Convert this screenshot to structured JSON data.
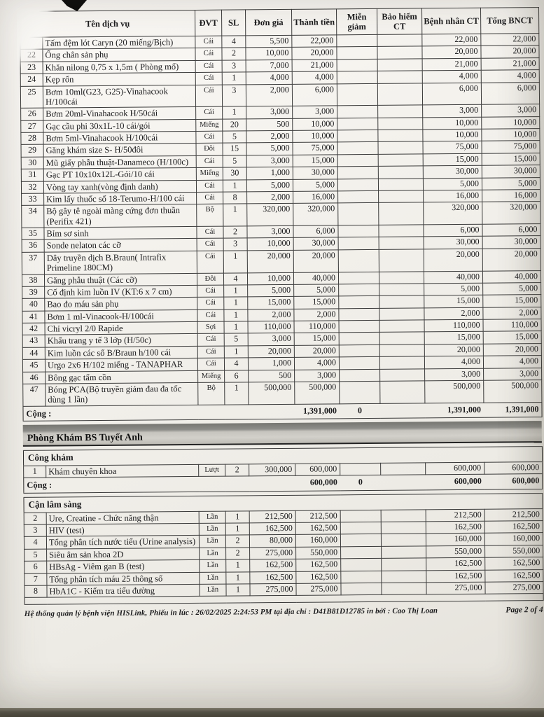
{
  "columns": [
    "Tên dịch vụ",
    "ĐVT",
    "SL",
    "Đơn giá",
    "Thành tiền",
    "Miễn giảm",
    "Bảo hiểm CT",
    "Bệnh nhân CT",
    "Tổng BNCT"
  ],
  "sections": [
    {
      "type": "table",
      "show_header": true,
      "rows": [
        [
          "",
          "Tấm đệm lót Caryn (20 miếng/Bịch)",
          "Cái",
          "4",
          "5,500",
          "22,000",
          "",
          "",
          "22,000",
          "22,000"
        ],
        [
          "22",
          "Ống chân sản phụ",
          "Cái",
          "2",
          "10,000",
          "20,000",
          "",
          "",
          "20,000",
          "20,000"
        ],
        [
          "23",
          "Khăn nilong 0,75 x 1,5m ( Phòng mổ)",
          "Cái",
          "3",
          "7,000",
          "21,000",
          "",
          "",
          "21,000",
          "21,000"
        ],
        [
          "24",
          "Kẹp rốn",
          "Cái",
          "1",
          "4,000",
          "4,000",
          "",
          "",
          "4,000",
          "4,000"
        ],
        [
          "25",
          "Bơm 10ml(G23, G25)-Vinahacook H/100cái",
          "Cái",
          "3",
          "2,000",
          "6,000",
          "",
          "",
          "6,000",
          "6,000"
        ],
        [
          "26",
          "Bơm 20ml-Vinahacook H/50cái",
          "Cái",
          "1",
          "3,000",
          "3,000",
          "",
          "",
          "3,000",
          "3,000"
        ],
        [
          "27",
          "Gạc cầu phi 30x1L-10 cái/gói",
          "Miếng",
          "20",
          "500",
          "10,000",
          "",
          "",
          "10,000",
          "10,000"
        ],
        [
          "28",
          "Bơm 5ml-Vinahacook H/100cái",
          "Cái",
          "5",
          "2,000",
          "10,000",
          "",
          "",
          "10,000",
          "10,000"
        ],
        [
          "29",
          "Găng khám size S- H/50đôi",
          "Đôi",
          "15",
          "5,000",
          "75,000",
          "",
          "",
          "75,000",
          "75,000"
        ],
        [
          "30",
          "Mũ giấy phẫu thuật-Danameco (H/100c)",
          "Cái",
          "5",
          "3,000",
          "15,000",
          "",
          "",
          "15,000",
          "15,000"
        ],
        [
          "31",
          "Gạc PT 10x10x12L-Gói/10 cái",
          "Miếng",
          "30",
          "1,000",
          "30,000",
          "",
          "",
          "30,000",
          "30,000"
        ],
        [
          "32",
          "Vòng tay xanh(vòng định danh)",
          "Cái",
          "1",
          "5,000",
          "5,000",
          "",
          "",
          "5,000",
          "5,000"
        ],
        [
          "33",
          "Kim lấy thuốc số 18-Terumo-H/100 cái",
          "Cái",
          "8",
          "2,000",
          "16,000",
          "",
          "",
          "16,000",
          "16,000"
        ],
        [
          "34",
          "Bộ gây tê ngoài màng cứng đơn thuần (Perifix 421)",
          "Bộ",
          "1",
          "320,000",
          "320,000",
          "",
          "",
          "320,000",
          "320,000"
        ],
        [
          "35",
          "Bỉm sơ sinh",
          "Cái",
          "2",
          "3,000",
          "6,000",
          "",
          "",
          "6,000",
          "6,000"
        ],
        [
          "36",
          "Sonde nelaton các cỡ",
          "Cái",
          "3",
          "10,000",
          "30,000",
          "",
          "",
          "30,000",
          "30,000"
        ],
        [
          "37",
          "Dây truyền dịch B.Braun( Intrafix Primeline 180CM)",
          "Cái",
          "1",
          "20,000",
          "20,000",
          "",
          "",
          "20,000",
          "20,000"
        ],
        [
          "38",
          "Găng phẫu thuật (Các cỡ)",
          "Đôi",
          "4",
          "10,000",
          "40,000",
          "",
          "",
          "40,000",
          "40,000"
        ],
        [
          "39",
          "Cố định kim luồn IV (KT:6 x 7 cm)",
          "Cái",
          "1",
          "5,000",
          "5,000",
          "",
          "",
          "5,000",
          "5,000"
        ],
        [
          "40",
          "Bao đo máu sản phụ",
          "Cái",
          "1",
          "15,000",
          "15,000",
          "",
          "",
          "15,000",
          "15,000"
        ],
        [
          "41",
          "Bơm 1 ml-Vinacook-H/100cái",
          "Cái",
          "1",
          "2,000",
          "2,000",
          "",
          "",
          "2,000",
          "2,000"
        ],
        [
          "42",
          "Chỉ vicryl 2/0 Rapide",
          "Sợi",
          "1",
          "110,000",
          "110,000",
          "",
          "",
          "110,000",
          "110,000"
        ],
        [
          "43",
          "Khẩu trang y tế 3 lớp (H/50c)",
          "Cái",
          "5",
          "3,000",
          "15,000",
          "",
          "",
          "15,000",
          "15,000"
        ],
        [
          "44",
          "Kim luồn các số B/Braun h/100 cái",
          "Cái",
          "1",
          "20,000",
          "20,000",
          "",
          "",
          "20,000",
          "20,000"
        ],
        [
          "45",
          "Urgo 2x6 H/102 miếng - TANAPHAR",
          "Cái",
          "4",
          "1,000",
          "4,000",
          "",
          "",
          "4,000",
          "4,000"
        ],
        [
          "46",
          "Bông gạc tẩm cồn",
          "Miếng",
          "6",
          "500",
          "3,000",
          "",
          "",
          "3,000",
          "3,000"
        ],
        [
          "47",
          "Bóng PCA(Bộ truyền giảm đau đa tốc dùng 1 lần)",
          "Bộ",
          "1",
          "500,000",
          "500,000",
          "",
          "",
          "500,000",
          "500,000"
        ]
      ],
      "total": {
        "label": "Cộng :",
        "amount": "1,391,000",
        "discount": "0",
        "patient": "1,391,000",
        "total": "1,391,000"
      }
    },
    {
      "type": "bar",
      "title": "Phòng Khám BS Tuyết  Anh"
    },
    {
      "type": "table",
      "label": "Công khám",
      "rows": [
        [
          "1",
          "Khám chuyên khoa",
          "Lượt",
          "2",
          "300,000",
          "600,000",
          "",
          "",
          "600,000",
          "600,000"
        ]
      ],
      "total": {
        "label": "Cộng :",
        "amount": "600,000",
        "discount": "0",
        "patient": "600,000",
        "total": "600,000"
      }
    },
    {
      "type": "table",
      "label": "Cận lâm sàng",
      "trailing_empty": true,
      "rows": [
        [
          "2",
          "Ure, Creatine - Chức năng thận",
          "Lần",
          "1",
          "212,500",
          "212,500",
          "",
          "",
          "212,500",
          "212,500"
        ],
        [
          "3",
          "HIV (test)",
          "Lần",
          "1",
          "162,500",
          "162,500",
          "",
          "",
          "162,500",
          "162,500"
        ],
        [
          "4",
          "Tổng phân tích nước tiểu (Urine analysis)",
          "Lần",
          "2",
          "80,000",
          "160,000",
          "",
          "",
          "160,000",
          "160,000"
        ],
        [
          "5",
          "Siêu âm sản khoa 2D",
          "Lần",
          "2",
          "275,000",
          "550,000",
          "",
          "",
          "550,000",
          "550,000"
        ],
        [
          "6",
          "HBsAg - Viêm gan B (test)",
          "Lần",
          "1",
          "162,500",
          "162,500",
          "",
          "",
          "162,500",
          "162,500"
        ],
        [
          "7",
          "Tổng phân tích máu 25 thông số",
          "Lần",
          "1",
          "162,500",
          "162,500",
          "",
          "",
          "162,500",
          "162,500"
        ],
        [
          "8",
          "HbA1C - Kiểm tra tiểu đường",
          "Lần",
          "1",
          "275,000",
          "275,000",
          "",
          "",
          "275,000",
          "275,000"
        ]
      ]
    }
  ],
  "footer": {
    "left": "Hệ thống quản lý bệnh viện HISLink, Phiếu in lúc : 26/02/2025 2:24:53 PM tại địa chỉ : D41B81D12785 in bởi : Cao Thị Loan",
    "right": "Page 2 of 4"
  },
  "colors": {
    "paper": "#f3f1ec",
    "ink": "#1b1b1d",
    "table_border": "#3a3a3a",
    "section_bar_dark": "#767671",
    "section_bar_light": "#d2d0ca",
    "photo_edge": "#57544a"
  }
}
